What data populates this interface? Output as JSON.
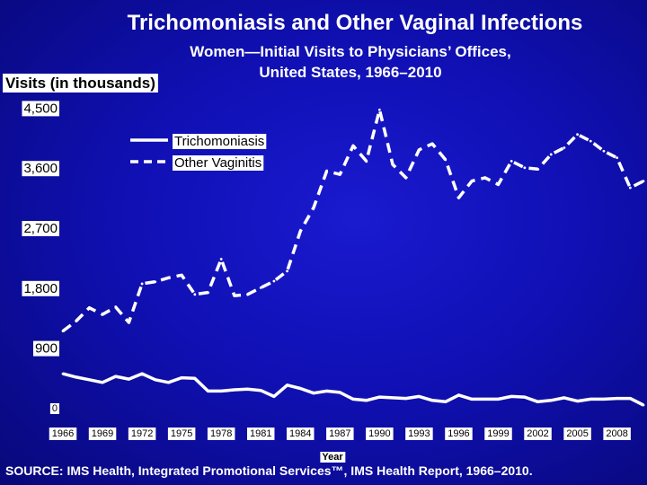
{
  "title": "Trichomoniasis and Other Vaginal Infections",
  "subtitle_lines": [
    "Women—Initial Visits to Physicians’ Offices,",
    "United States, 1966–2010"
  ],
  "source": "SOURCE: IMS Health, Integrated Promotional Services™, IMS Health Report, 1966–2010.",
  "chart_data": {
    "type": "line",
    "ylabel": "Visits (in thousands)",
    "xlabel": "Year",
    "ylim": [
      0,
      4500
    ],
    "xlim": [
      1966,
      2010
    ],
    "y_ticks": [
      "0",
      "900",
      "1,800",
      "2,700",
      "3,600",
      "4,500"
    ],
    "y_tick_values": [
      0,
      900,
      1800,
      2700,
      3600,
      4500
    ],
    "x_ticks": [
      "1966",
      "1969",
      "1972",
      "1975",
      "1978",
      "1981",
      "1984",
      "1987",
      "1990",
      "1993",
      "1996",
      "1999",
      "2002",
      "2005",
      "2008"
    ],
    "grid": false,
    "legend_position": "upper-left",
    "series": [
      {
        "name": "Trichomoniasis",
        "style": "solid",
        "color": "#ffffff",
        "x": [
          1966,
          1967,
          1968,
          1969,
          1970,
          1971,
          1972,
          1973,
          1974,
          1975,
          1976,
          1977,
          1978,
          1979,
          1980,
          1981,
          1982,
          1983,
          1984,
          1985,
          1986,
          1987,
          1988,
          1989,
          1990,
          1991,
          1992,
          1993,
          1994,
          1995,
          1996,
          1997,
          1998,
          1999,
          2000,
          2001,
          2002,
          2003,
          2004,
          2005,
          2006,
          2007,
          2008,
          2009,
          2010
        ],
        "values": [
          510,
          460,
          420,
          380,
          470,
          430,
          510,
          420,
          380,
          450,
          440,
          250,
          250,
          270,
          280,
          260,
          170,
          340,
          290,
          220,
          250,
          230,
          130,
          110,
          160,
          150,
          140,
          170,
          110,
          90,
          190,
          130,
          130,
          130,
          170,
          160,
          90,
          110,
          150,
          100,
          130,
          130,
          140,
          140,
          40
        ]
      },
      {
        "name": "Other Vaginitis",
        "style": "dashed",
        "color": "#ffffff",
        "x": [
          1966,
          1967,
          1968,
          1969,
          1970,
          1971,
          1972,
          1973,
          1974,
          1975,
          1976,
          1977,
          1978,
          1979,
          1980,
          1981,
          1982,
          1983,
          1984,
          1985,
          1986,
          1987,
          1988,
          1989,
          1990,
          1991,
          1992,
          1993,
          1994,
          1995,
          1996,
          1997,
          1998,
          1999,
          2000,
          2001,
          2002,
          2003,
          2004,
          2005,
          2006,
          2007,
          2008,
          2009,
          2010
        ],
        "values": [
          1150,
          1300,
          1500,
          1400,
          1510,
          1280,
          1860,
          1890,
          1950,
          1990,
          1700,
          1730,
          2230,
          1680,
          1700,
          1800,
          1900,
          2050,
          2650,
          3000,
          3550,
          3500,
          3930,
          3700,
          4470,
          3650,
          3450,
          3870,
          3960,
          3720,
          3150,
          3400,
          3450,
          3350,
          3700,
          3600,
          3580,
          3800,
          3900,
          4100,
          4000,
          3850,
          3750,
          3300,
          3400
        ]
      }
    ]
  }
}
